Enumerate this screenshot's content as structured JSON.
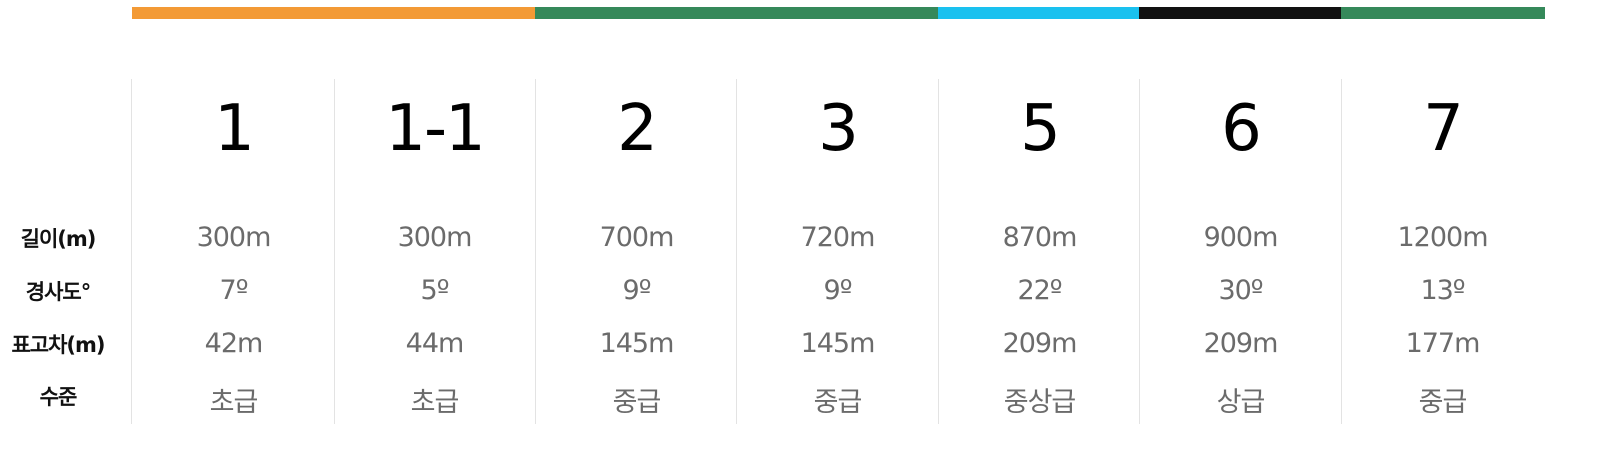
{
  "colors": {
    "orange": "#f39a35",
    "green": "#35895a",
    "sky": "#1ac1ef",
    "black": "#121212"
  },
  "row_labels": {
    "length": "길이(m)",
    "grade": "경사도°",
    "elevation": "표고차(m)",
    "level": "수준"
  },
  "slopes": [
    {
      "name": "1",
      "color": "orange",
      "length": "300m",
      "grade": "7º",
      "elevation": "42m",
      "level": "초급"
    },
    {
      "name": "1-1",
      "color": "orange",
      "length": "300m",
      "grade": "5º",
      "elevation": "44m",
      "level": "초급"
    },
    {
      "name": "2",
      "color": "green",
      "length": "700m",
      "grade": "9º",
      "elevation": "145m",
      "level": "중급"
    },
    {
      "name": "3",
      "color": "green",
      "length": "720m",
      "grade": "9º",
      "elevation": "145m",
      "level": "중급"
    },
    {
      "name": "5",
      "color": "sky",
      "length": "870m",
      "grade": "22º",
      "elevation": "209m",
      "level": "중상급"
    },
    {
      "name": "6",
      "color": "black",
      "length": "900m",
      "grade": "30º",
      "elevation": "209m",
      "level": "상급"
    },
    {
      "name": "7",
      "color": "green",
      "length": "1200m",
      "grade": "13º",
      "elevation": "177m",
      "level": "중급"
    }
  ]
}
